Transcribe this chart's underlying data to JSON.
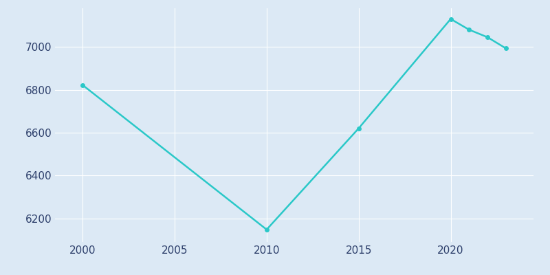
{
  "years": [
    2000,
    2010,
    2015,
    2020,
    2021,
    2022,
    2023
  ],
  "population": [
    6822,
    6148,
    6620,
    7130,
    7080,
    7045,
    6993
  ],
  "line_color": "#2ac8c8",
  "marker_color": "#2ac8c8",
  "background_color": "#dce9f5",
  "plot_background": "#dce9f5",
  "grid_color": "#ffffff",
  "tick_label_color": "#2d3f6b",
  "ylim": [
    6090,
    7180
  ],
  "xlim": [
    1998.5,
    2024.5
  ],
  "xticks": [
    2000,
    2005,
    2010,
    2015,
    2020
  ],
  "yticks": [
    6200,
    6400,
    6600,
    6800,
    7000
  ],
  "linewidth": 1.8,
  "markersize": 4
}
